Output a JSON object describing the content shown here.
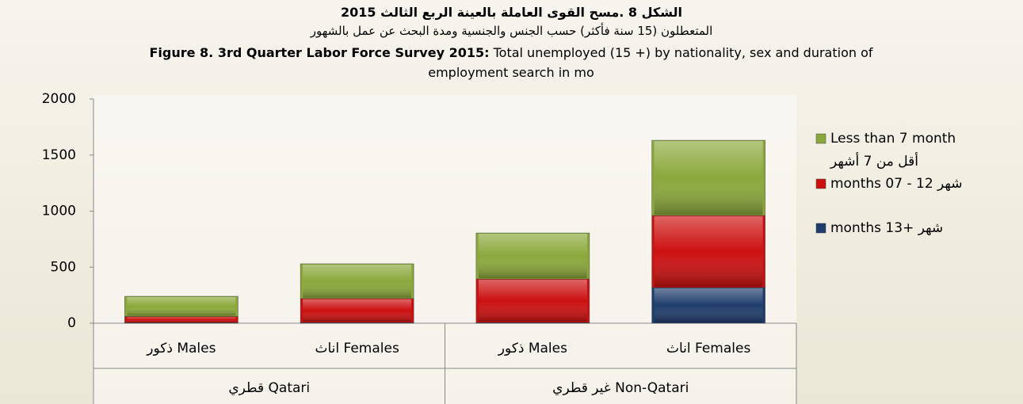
{
  "chart_data": {
    "type": "stacked_bar",
    "title_ar": "الشكل 8 .مسح القوى العاملة بالعينة الربع الثالث 2015",
    "subtitle_ar": "المتعطلون (15 سنة فأكثر) حسب الجنس والجنسية ومدة البحث عن عمل بالشهور",
    "title_bold": "Figure 8.  3rd Quarter Labor Force Survey 2015:",
    "title_rest": "Total unemployed (15 +) by nationality, sex and duration of employment search in mo",
    "categories": [
      "ذكور Males",
      "اناث Females",
      "ذكور Males",
      "اناث Females"
    ],
    "groups": [
      {
        "label": "قطري Qatari",
        "size": 2
      },
      {
        "label": "غير قطري Non-Qatari",
        "size": 2
      }
    ],
    "series": [
      {
        "name": "months 13+ شهر",
        "color": "#1f3d6b",
        "values": [
          5,
          5,
          5,
          318
        ]
      },
      {
        "name": "months 07 - 12 شهر",
        "color": "#cc1010",
        "values": [
          55,
          215,
          390,
          643
        ]
      },
      {
        "name": "Less than 7 month",
        "name_ar": "أقل من 7 أشهر",
        "color": "#8aa83a",
        "values": [
          180,
          310,
          410,
          671
        ]
      }
    ],
    "ylim": [
      0,
      2000
    ],
    "yticks": [
      0,
      500,
      1000,
      1500,
      2000
    ],
    "grid": false
  }
}
